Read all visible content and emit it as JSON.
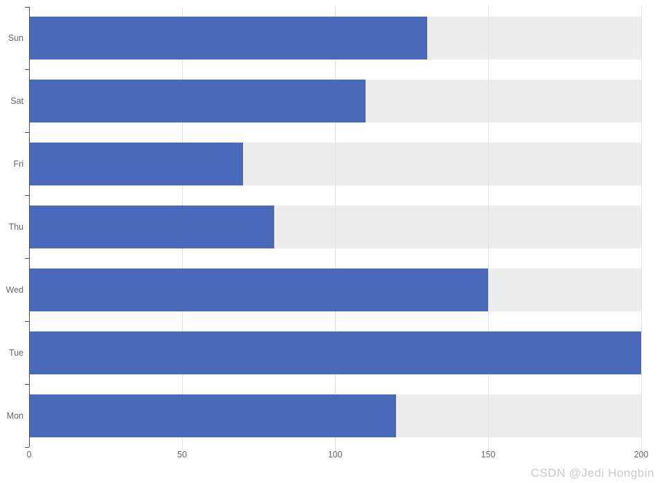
{
  "watermark": {
    "text": "CSDN @Jedi Hongbin"
  },
  "chart_data": {
    "type": "bar",
    "orientation": "horizontal",
    "title": "",
    "xlabel": "",
    "ylabel": "",
    "categories": [
      "Sun",
      "Sat",
      "Fri",
      "Thu",
      "Wed",
      "Tue",
      "Mon"
    ],
    "values": [
      130,
      110,
      70,
      80,
      150,
      200,
      120
    ],
    "series": [
      {
        "name": "value",
        "values": [
          130,
          110,
          70,
          80,
          150,
          200,
          120
        ]
      }
    ],
    "x_ticks": [
      0,
      50,
      100,
      150,
      200
    ],
    "x_tick_labels": [
      "0",
      "50",
      "100",
      "150",
      "200"
    ],
    "xlim": [
      0,
      200
    ],
    "grid": true,
    "legend_position": "none",
    "background_track_full_width": true,
    "colors": {
      "bar": "#4b69ba",
      "track": "#ededed",
      "gridline": "#dde3ee",
      "axis": "#4a4a4a",
      "tick_label": "#666666",
      "watermark": "#c9c9c9"
    }
  }
}
